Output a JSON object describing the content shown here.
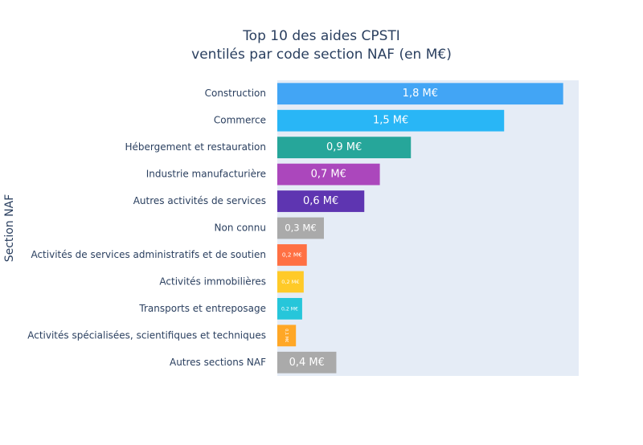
{
  "chart_data": {
    "type": "hbar",
    "title": "Top 10 des aides CPSTI",
    "subtitle": "ventilés par code section NAF (en M€)",
    "y_label": "Section NAF",
    "categories": [
      "Construction",
      "Commerce",
      "Hébergement et restauration",
      "Industrie manufacturière",
      "Autres activités de services",
      "Non connu",
      "Activités de services administratifs et de soutien",
      "Activités immobilières",
      "Transports et entreposage",
      "Activités spécialisées, scientifiques et techniques",
      "Autres sections NAF"
    ],
    "values": [
      1.84,
      1.46,
      0.86,
      0.66,
      0.56,
      0.3,
      0.19,
      0.17,
      0.16,
      0.12,
      0.38
    ],
    "value_labels": [
      "1,8 M€",
      "1,5 M€",
      "0,9 M€",
      "0,7 M€",
      "0,6 M€",
      "0,3 M€",
      "0,2 M€",
      "0,2 M€",
      "0,2 M€",
      "0,1 M€",
      "0,4 M€"
    ],
    "colors": [
      "#42a5f5",
      "#29b6f6",
      "#26a69a",
      "#ab47bc",
      "#5e35b1",
      "#aaaaaa",
      "#ff7043",
      "#ffca28",
      "#26c6da",
      "#ffa726",
      "#aaaaaa"
    ],
    "xlim": [
      0,
      1.94
    ]
  }
}
